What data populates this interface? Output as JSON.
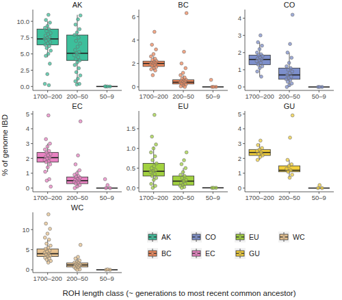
{
  "chart_data": [
    {
      "type": "box",
      "title": "AK",
      "categories": [
        "1700–200",
        "200–50",
        "50–9"
      ],
      "legend": "bottom-right",
      "ylim": [
        -0.6,
        11.8
      ],
      "yticks": [
        {
          "value": 0,
          "label": "0.0"
        },
        2.5,
        {
          "value": 5,
          "label": "5.0"
        },
        {
          "value": 7.5,
          "label": "7.5"
        },
        {
          "value": 10,
          "label": "10.0"
        }
      ],
      "series": [
        {
          "name": "AK",
          "color": "#3dbf9b",
          "whisker_low": [
            4.5,
            0.3,
            0
          ],
          "q1": [
            6.4,
            4.0,
            0
          ],
          "median": [
            7.3,
            5.1,
            0
          ],
          "q3": [
            8.8,
            7.9,
            0
          ],
          "whisker_high": [
            10.0,
            11.0,
            0
          ],
          "points": [
            [
              11.0,
              10.2,
              9.8,
              9.3,
              9.0,
              8.8,
              8.5,
              8.2,
              8.0,
              7.8,
              7.6,
              7.4,
              7.3,
              7.2,
              7.0,
              6.8,
              6.6,
              6.4,
              6.2,
              5.9,
              5.5,
              5.0,
              4.7,
              3.5,
              1.9,
              0.4,
              0.2
            ],
            [
              10.9,
              10.3,
              9.5,
              8.8,
              8.3,
              7.9,
              7.5,
              7.0,
              6.6,
              6.1,
              5.6,
              5.3,
              5.1,
              4.8,
              4.5,
              4.2,
              4.0,
              3.7,
              3.3,
              2.8,
              2.2,
              1.7,
              1.2,
              0.8,
              0.4,
              0.3
            ],
            [
              0,
              0,
              0,
              0.02
            ]
          ]
        }
      ]
    },
    {
      "type": "box",
      "title": "BC",
      "categories": [
        "1700–200",
        "200–50",
        "50–9"
      ],
      "ylim": [
        -0.3,
        6.6
      ],
      "yticks": [
        0,
        2,
        4,
        6
      ],
      "series": [
        {
          "name": "BC",
          "color": "#f08a5d",
          "whisker_low": [
            1.4,
            0,
            0
          ],
          "q1": [
            1.75,
            0.25,
            0
          ],
          "median": [
            2.0,
            0.4,
            0
          ],
          "q3": [
            2.2,
            0.6,
            0
          ],
          "whisker_high": [
            2.6,
            1.0,
            0
          ],
          "points": [
            [
              4.7,
              3.6,
              3.2,
              2.8,
              2.6,
              2.4,
              2.3,
              2.2,
              2.1,
              2.05,
              2.0,
              1.95,
              1.9,
              1.85,
              1.8,
              1.7,
              1.6,
              1.5,
              1.4,
              1.0
            ],
            [
              6.3,
              3.0,
              2.0,
              1.6,
              1.2,
              1.0,
              0.8,
              0.7,
              0.6,
              0.55,
              0.5,
              0.45,
              0.4,
              0.35,
              0.3,
              0.25,
              0.2,
              0.1,
              0.05,
              0
            ],
            [
              0,
              0,
              0,
              0.6
            ]
          ]
        }
      ]
    },
    {
      "type": "box",
      "title": "CO",
      "categories": [
        "1700–200",
        "200–50",
        "50–9"
      ],
      "ylim": [
        -0.2,
        4.5
      ],
      "yticks": [
        0,
        1,
        2,
        3,
        4
      ],
      "series": [
        {
          "name": "CO",
          "color": "#7d8fcb",
          "whisker_low": [
            0.6,
            0,
            0
          ],
          "q1": [
            1.3,
            0.45,
            0
          ],
          "median": [
            1.6,
            0.7,
            0
          ],
          "q3": [
            1.85,
            1.1,
            0
          ],
          "whisker_high": [
            2.6,
            2.0,
            0
          ],
          "points": [
            [
              3.0,
              2.6,
              2.4,
              2.2,
              2.0,
              1.9,
              1.85,
              1.8,
              1.7,
              1.65,
              1.6,
              1.55,
              1.5,
              1.4,
              1.3,
              1.2,
              1.1,
              0.9,
              0.6
            ],
            [
              4.2,
              2.5,
              2.0,
              1.7,
              1.4,
              1.2,
              1.1,
              1.0,
              0.9,
              0.8,
              0.7,
              0.6,
              0.5,
              0.45,
              0.4,
              0.3,
              0.2,
              0.1,
              0
            ],
            [
              0,
              0,
              0
            ]
          ]
        }
      ]
    },
    {
      "type": "box",
      "title": "EC",
      "categories": [
        "1700–200",
        "200–50",
        "50–9"
      ],
      "ylim": [
        -0.25,
        5.2
      ],
      "yticks": [
        0,
        1,
        2,
        3,
        4,
        5
      ],
      "series": [
        {
          "name": "EC",
          "color": "#e882c2",
          "whisker_low": [
            1.1,
            0,
            0
          ],
          "q1": [
            1.75,
            0.3,
            0
          ],
          "median": [
            2.05,
            0.5,
            0
          ],
          "q3": [
            2.4,
            0.75,
            0
          ],
          "whisker_high": [
            3.0,
            1.2,
            0
          ],
          "points": [
            [
              4.9,
              3.3,
              3.0,
              2.8,
              2.6,
              2.5,
              2.4,
              2.3,
              2.2,
              2.1,
              2.05,
              2.0,
              1.9,
              1.8,
              1.75,
              1.6,
              1.4,
              1.1,
              0.6,
              0.5,
              0.1
            ],
            [
              4.5,
              2.2,
              1.6,
              1.2,
              1.0,
              0.9,
              0.8,
              0.75,
              0.7,
              0.6,
              0.55,
              0.5,
              0.45,
              0.4,
              0.35,
              0.3,
              0.2,
              0.1,
              0
            ],
            [
              0,
              0,
              0.2,
              0.6
            ]
          ]
        }
      ]
    },
    {
      "type": "box",
      "title": "EU",
      "categories": [
        "1700–200",
        "200–50",
        "50–9"
      ],
      "ylim": [
        -0.1,
        1.95
      ],
      "yticks": [
        {
          "value": 0,
          "label": "0.0"
        },
        0.5,
        {
          "value": 1,
          "label": "1.0"
        },
        1.5
      ],
      "series": [
        {
          "name": "EU",
          "color": "#a2d240",
          "whisker_low": [
            0,
            0,
            0
          ],
          "q1": [
            0.3,
            0.07,
            0
          ],
          "median": [
            0.42,
            0.17,
            0
          ],
          "q3": [
            0.62,
            0.3,
            0
          ],
          "whisker_high": [
            1.05,
            0.5,
            0
          ],
          "points": [
            [
              1.85,
              1.3,
              1.1,
              1.0,
              0.9,
              0.8,
              0.7,
              0.62,
              0.55,
              0.5,
              0.45,
              0.42,
              0.4,
              0.35,
              0.3,
              0.25,
              0.2,
              0.1,
              0.05,
              0
            ],
            [
              0.9,
              0.7,
              0.6,
              0.5,
              0.4,
              0.33,
              0.3,
              0.25,
              0.2,
              0.17,
              0.12,
              0.1,
              0.07,
              0.05,
              0.02,
              0
            ],
            [
              0,
              0,
              0
            ]
          ]
        }
      ]
    },
    {
      "type": "box",
      "title": "GU",
      "categories": [
        "1700–200",
        "200–50",
        "50–9"
      ],
      "ylim": [
        -0.25,
        5.2
      ],
      "yticks": [
        0,
        1,
        2,
        3,
        4,
        5
      ],
      "series": [
        {
          "name": "GU",
          "color": "#f2cf3b",
          "whisker_low": [
            1.9,
            0.7,
            0
          ],
          "q1": [
            2.2,
            1.1,
            0
          ],
          "median": [
            2.4,
            1.2,
            0
          ],
          "q3": [
            2.6,
            1.5,
            0
          ],
          "whisker_high": [
            3.0,
            1.9,
            0
          ],
          "points": [
            [
              3.2,
              2.9,
              2.7,
              2.6,
              2.5,
              2.4,
              2.3,
              2.2,
              2.1,
              1.9
            ],
            [
              4.9,
              3.4,
              1.9,
              1.6,
              1.5,
              1.3,
              1.2,
              1.1,
              0.9,
              0.7
            ],
            [
              0,
              0,
              0.2
            ]
          ]
        }
      ]
    },
    {
      "type": "box",
      "title": "WC",
      "categories": [
        "1700–200",
        "200–50",
        "50–9"
      ],
      "ylim": [
        -0.7,
        14.3
      ],
      "yticks": [
        0,
        5,
        10
      ],
      "series": [
        {
          "name": "WC",
          "color": "#e6c18f",
          "whisker_low": [
            1.8,
            0,
            0
          ],
          "q1": [
            3.3,
            0.7,
            0
          ],
          "median": [
            4.0,
            1.2,
            0
          ],
          "q3": [
            5.2,
            1.7,
            0
          ],
          "whisker_high": [
            7.5,
            2.8,
            0
          ],
          "points": [
            [
              13.8,
              11.5,
              10.2,
              9.0,
              8.0,
              7.5,
              6.5,
              6.0,
              5.5,
              5.2,
              4.8,
              4.5,
              4.2,
              4.0,
              3.8,
              3.5,
              3.3,
              3.0,
              2.8,
              2.5,
              2.2,
              1.8
            ],
            [
              6.2,
              3.2,
              2.8,
              2.3,
              2.0,
              1.8,
              1.7,
              1.5,
              1.3,
              1.2,
              1.1,
              0.9,
              0.8,
              0.7,
              0.5,
              0.3,
              0.1,
              0
            ],
            [
              0,
              0,
              0.1
            ]
          ]
        }
      ]
    }
  ],
  "axis_labels": {
    "x": "ROH length class (~ generations to most recent common ancestor)",
    "y": "% of genome IBD"
  }
}
